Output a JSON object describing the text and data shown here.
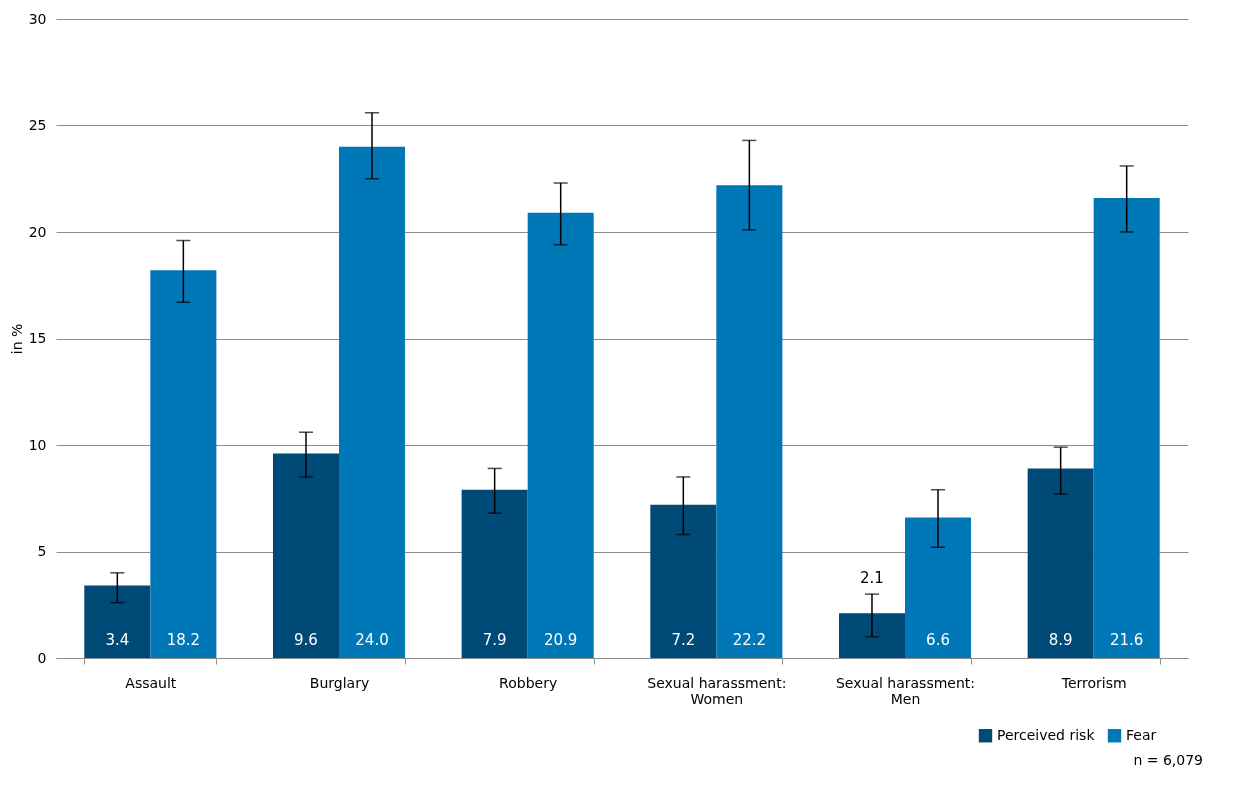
{
  "chart_data": {
    "type": "bar",
    "ylabel": "in %",
    "categories": [
      "Assault",
      "Burglary",
      "Robbery",
      "Sexual harassment: Women",
      "Sexual harassment: Men",
      "Terrorism"
    ],
    "series": [
      {
        "name": "Perceived risk",
        "color": "#004a77",
        "values": [
          3.4,
          9.6,
          7.9,
          7.2,
          2.1,
          8.9
        ],
        "value_labels": [
          "3.4",
          "9.6",
          "7.9",
          "7.2",
          "2.1",
          "8.9"
        ],
        "errors": [
          [
            2.6,
            4.0
          ],
          [
            8.5,
            10.6
          ],
          [
            6.8,
            8.9
          ],
          [
            5.8,
            8.5
          ],
          [
            1.0,
            3.0
          ],
          [
            7.7,
            9.9
          ]
        ]
      },
      {
        "name": "Fear",
        "color": "#0077b6",
        "values": [
          18.2,
          24.0,
          20.9,
          22.2,
          6.6,
          21.6
        ],
        "value_labels": [
          "18.2",
          "24.0",
          "20.9",
          "22.2",
          "6.6",
          "21.6"
        ],
        "errors": [
          [
            16.7,
            19.6
          ],
          [
            22.5,
            25.6
          ],
          [
            19.4,
            22.3
          ],
          [
            20.1,
            24.3
          ],
          [
            5.2,
            7.9
          ],
          [
            20.0,
            23.1
          ]
        ]
      }
    ],
    "ylim": [
      0,
      30
    ],
    "yticks": [
      0,
      5,
      10,
      15,
      20,
      25,
      30
    ],
    "grid": "y",
    "legend": "bottom right",
    "annotations": [
      "n = 6,079"
    ]
  }
}
